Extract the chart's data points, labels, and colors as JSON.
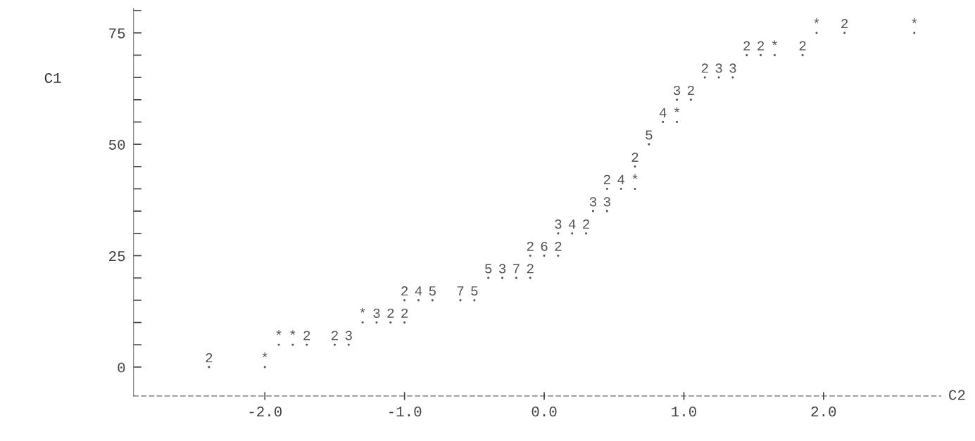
{
  "chart_data": {
    "type": "scatter",
    "xlabel": "C2",
    "ylabel": "C1",
    "grid": false,
    "legend": false,
    "marker": "circle",
    "xlim": [
      -2.94,
      2.84
    ],
    "ylim": [
      -6.5,
      80.5
    ],
    "xticks": [
      {
        "value": -2,
        "label": "-2.0"
      },
      {
        "value": -1,
        "label": "-1.0"
      },
      {
        "value": 0,
        "label": "0.0"
      },
      {
        "value": 1,
        "label": "1.0"
      },
      {
        "value": 2,
        "label": "2.0"
      }
    ],
    "yticks": [
      0,
      {
        "value": 5,
        "label": null
      },
      {
        "value": 10,
        "label": null
      },
      {
        "value": 15,
        "label": null
      },
      {
        "value": 20,
        "label": null
      },
      25,
      {
        "value": 30,
        "label": null
      },
      {
        "value": 35,
        "label": null
      },
      {
        "value": 40,
        "label": null
      },
      {
        "value": 45,
        "label": null
      },
      50,
      {
        "value": 55,
        "label": null
      },
      {
        "value": 60,
        "label": null
      },
      {
        "value": 65,
        "label": null
      },
      {
        "value": 70,
        "label": null
      },
      75,
      {
        "value": 80,
        "label": null
      }
    ],
    "series": [
      {
        "name": "*",
        "color": "#555555",
        "x": [
          -2.0,
          -1.9,
          -1.8,
          -1.3,
          0.65,
          0.95,
          1.65,
          1.95,
          2.65
        ],
        "values": [
          0,
          5,
          5,
          10,
          40,
          55,
          70,
          75,
          75
        ]
      },
      {
        "name": "2",
        "color": "#555555",
        "x": [
          -2.4,
          -1.7,
          -1.5,
          -1.1,
          -1.0,
          -1.0,
          -0.1,
          -0.1,
          0.1,
          0.3,
          0.45,
          0.65,
          1.05,
          1.15,
          1.45,
          1.55,
          1.85,
          2.15
        ],
        "values": [
          0,
          5,
          5,
          10,
          10,
          15,
          20,
          25,
          25,
          30,
          40,
          45,
          60,
          65,
          70,
          70,
          70,
          75
        ]
      },
      {
        "name": "3",
        "color": "#555555",
        "x": [
          -1.4,
          -1.2,
          -0.3,
          0.1,
          0.35,
          0.45,
          0.95,
          1.25,
          1.35
        ],
        "values": [
          5,
          10,
          20,
          30,
          35,
          35,
          60,
          65,
          65
        ]
      },
      {
        "name": "4",
        "color": "#555555",
        "x": [
          -0.9,
          0.2,
          0.55,
          0.85
        ],
        "values": [
          15,
          30,
          40,
          55
        ]
      },
      {
        "name": "5",
        "color": "#555555",
        "x": [
          -0.8,
          -0.5,
          -0.4,
          0.75
        ],
        "values": [
          15,
          15,
          20,
          50
        ]
      },
      {
        "name": "6",
        "color": "#555555",
        "x": [
          0.0
        ],
        "values": [
          25
        ]
      },
      {
        "name": "7",
        "color": "#555555",
        "x": [
          -0.6,
          -0.2
        ],
        "values": [
          15,
          20
        ]
      }
    ]
  }
}
